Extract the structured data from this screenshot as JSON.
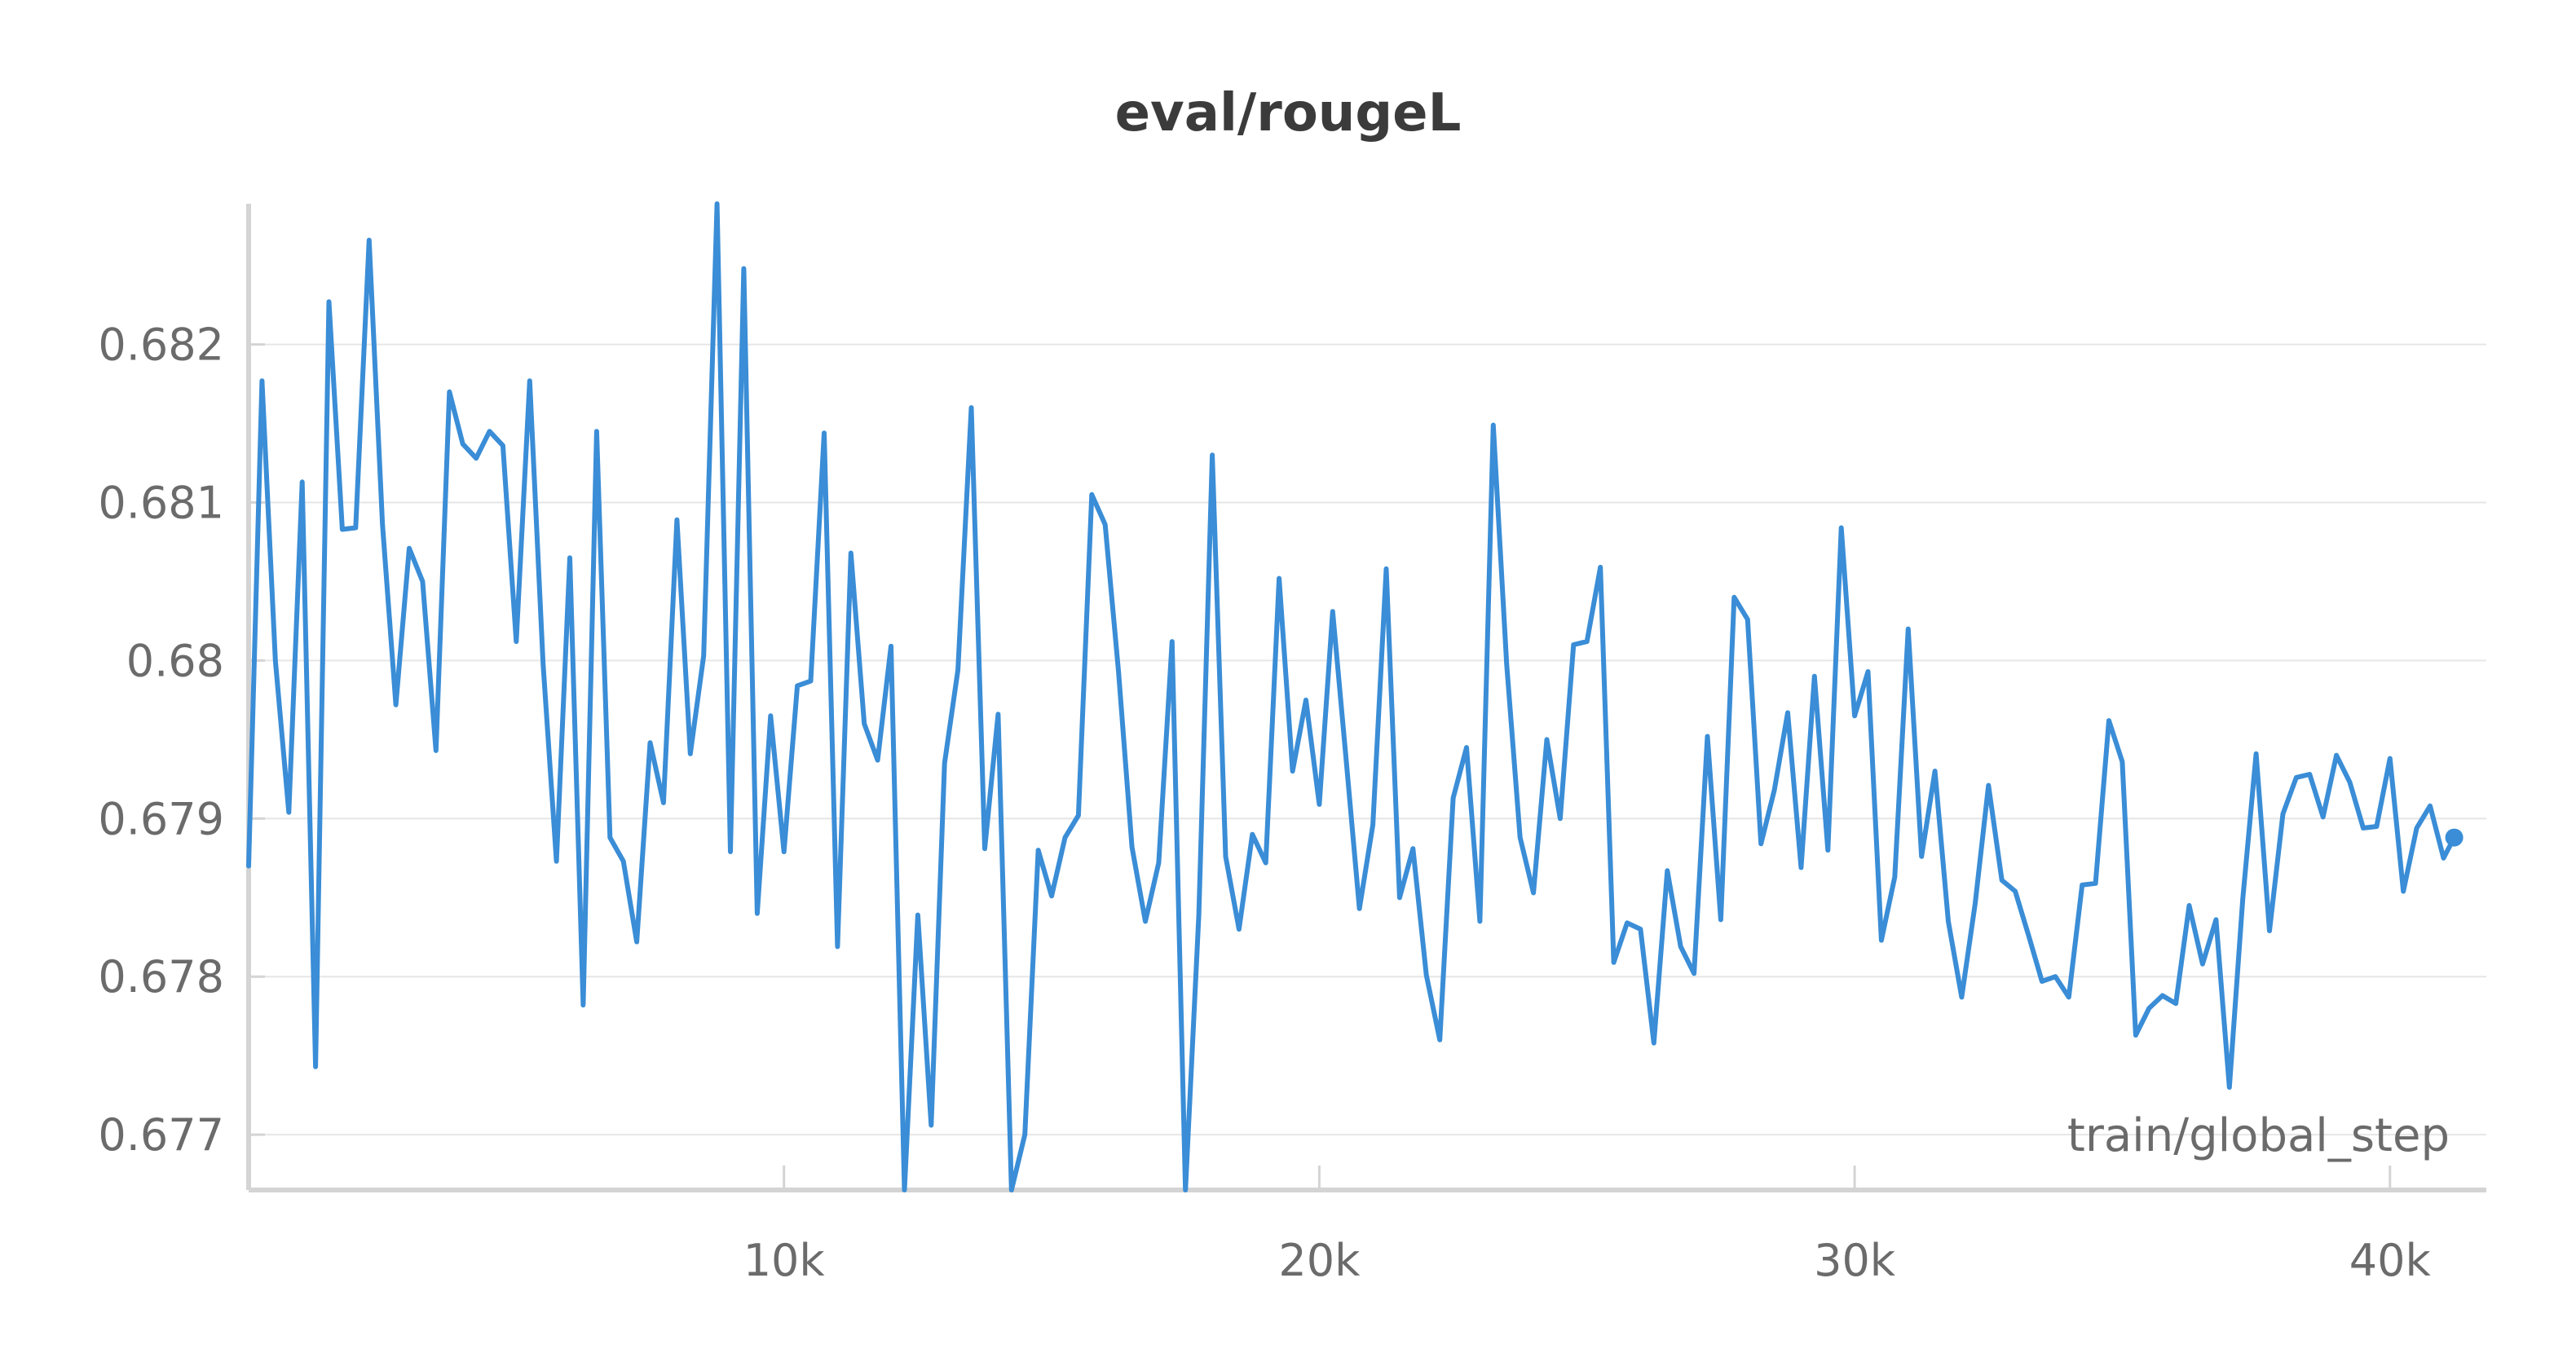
{
  "chart_data": {
    "type": "line",
    "title": "eval/rougeL",
    "xlabel": "train/global_step",
    "ylabel": "",
    "xlim": [
      0,
      41800
    ],
    "ylim": [
      0.67665,
      0.68289
    ],
    "x_ticks": [
      {
        "value": 10000,
        "label": "10k"
      },
      {
        "value": 20000,
        "label": "20k"
      },
      {
        "value": 30000,
        "label": "30k"
      },
      {
        "value": 40000,
        "label": "40k"
      }
    ],
    "y_ticks": [
      {
        "value": 0.677,
        "label": "0.677"
      },
      {
        "value": 0.678,
        "label": "0.678"
      },
      {
        "value": 0.679,
        "label": "0.679"
      },
      {
        "value": 0.68,
        "label": "0.68"
      },
      {
        "value": 0.681,
        "label": "0.681"
      },
      {
        "value": 0.682,
        "label": "0.682"
      }
    ],
    "grid": true,
    "legend": "none",
    "series": [
      {
        "color": "#3a8dd6",
        "points": [
          [
            0,
            0.6787
          ],
          [
            250,
            0.68177
          ],
          [
            500,
            0.68
          ],
          [
            750,
            0.67904
          ],
          [
            1000,
            0.68113
          ],
          [
            1250,
            0.67743
          ],
          [
            1500,
            0.68227
          ],
          [
            1750,
            0.68083
          ],
          [
            2000,
            0.68084
          ],
          [
            2250,
            0.68266
          ],
          [
            2500,
            0.68086
          ],
          [
            2750,
            0.67972
          ],
          [
            3000,
            0.68071
          ],
          [
            3250,
            0.6805
          ],
          [
            3500,
            0.67943
          ],
          [
            3750,
            0.6817
          ],
          [
            4000,
            0.68137
          ],
          [
            4250,
            0.68128
          ],
          [
            4500,
            0.68145
          ],
          [
            4750,
            0.68136
          ],
          [
            5000,
            0.68012
          ],
          [
            5250,
            0.68177
          ],
          [
            5500,
            0.67998
          ],
          [
            5750,
            0.67873
          ],
          [
            6000,
            0.68065
          ],
          [
            6250,
            0.67782
          ],
          [
            6500,
            0.68145
          ],
          [
            6750,
            0.67888
          ],
          [
            7000,
            0.67873
          ],
          [
            7250,
            0.67822
          ],
          [
            7500,
            0.67948
          ],
          [
            7750,
            0.6791
          ],
          [
            8000,
            0.68089
          ],
          [
            8250,
            0.67941
          ],
          [
            8500,
            0.68003
          ],
          [
            8750,
            0.68289
          ],
          [
            9000,
            0.67879
          ],
          [
            9250,
            0.68248
          ],
          [
            9500,
            0.6784
          ],
          [
            9750,
            0.67965
          ],
          [
            10000,
            0.67879
          ],
          [
            10250,
            0.67984
          ],
          [
            10500,
            0.67987
          ],
          [
            10750,
            0.68144
          ],
          [
            11000,
            0.67819
          ],
          [
            11250,
            0.68068
          ],
          [
            11500,
            0.6796
          ],
          [
            11750,
            0.67937
          ],
          [
            12000,
            0.68009
          ],
          [
            12250,
            0.67665
          ],
          [
            12500,
            0.67839
          ],
          [
            12750,
            0.67706
          ],
          [
            13000,
            0.67935
          ],
          [
            13250,
            0.67994
          ],
          [
            13500,
            0.6816
          ],
          [
            13750,
            0.67881
          ],
          [
            14000,
            0.67966
          ],
          [
            14250,
            0.67665
          ],
          [
            14500,
            0.677
          ],
          [
            14750,
            0.6788
          ],
          [
            15000,
            0.67851
          ],
          [
            15250,
            0.67888
          ],
          [
            15500,
            0.67902
          ],
          [
            15750,
            0.68105
          ],
          [
            16000,
            0.68086
          ],
          [
            16250,
            0.67993
          ],
          [
            16500,
            0.67882
          ],
          [
            16750,
            0.67835
          ],
          [
            17000,
            0.67872
          ],
          [
            17250,
            0.68012
          ],
          [
            17500,
            0.67665
          ],
          [
            17750,
            0.67839
          ],
          [
            18000,
            0.6813
          ],
          [
            18250,
            0.67876
          ],
          [
            18500,
            0.6783
          ],
          [
            18750,
            0.6789
          ],
          [
            19000,
            0.67872
          ],
          [
            19250,
            0.68052
          ],
          [
            19500,
            0.6793
          ],
          [
            19750,
            0.67975
          ],
          [
            20000,
            0.67909
          ],
          [
            20250,
            0.68031
          ],
          [
            20500,
            0.67938
          ],
          [
            20750,
            0.67843
          ],
          [
            21000,
            0.67896
          ],
          [
            21250,
            0.68058
          ],
          [
            21500,
            0.6785
          ],
          [
            21750,
            0.67881
          ],
          [
            22000,
            0.67801
          ],
          [
            22250,
            0.6776
          ],
          [
            22500,
            0.67913
          ],
          [
            22750,
            0.67945
          ],
          [
            23000,
            0.67835
          ],
          [
            23250,
            0.68149
          ],
          [
            23500,
            0.67998
          ],
          [
            23750,
            0.67888
          ],
          [
            24000,
            0.67853
          ],
          [
            24250,
            0.6795
          ],
          [
            24500,
            0.679
          ],
          [
            24750,
            0.6801
          ],
          [
            25000,
            0.68012
          ],
          [
            25250,
            0.68059
          ],
          [
            25500,
            0.67809
          ],
          [
            25750,
            0.67834
          ],
          [
            26000,
            0.6783
          ],
          [
            26250,
            0.67758
          ],
          [
            26500,
            0.67867
          ],
          [
            26750,
            0.67819
          ],
          [
            27000,
            0.67802
          ],
          [
            27250,
            0.67952
          ],
          [
            27500,
            0.67836
          ],
          [
            27750,
            0.6804
          ],
          [
            28000,
            0.68026
          ],
          [
            28250,
            0.67884
          ],
          [
            28500,
            0.67918
          ],
          [
            28750,
            0.67967
          ],
          [
            29000,
            0.67869
          ],
          [
            29250,
            0.6799
          ],
          [
            29500,
            0.6788
          ],
          [
            29750,
            0.68084
          ],
          [
            30000,
            0.67965
          ],
          [
            30250,
            0.67993
          ],
          [
            30500,
            0.67823
          ],
          [
            30750,
            0.67863
          ],
          [
            31000,
            0.6802
          ],
          [
            31250,
            0.67876
          ],
          [
            31500,
            0.6793
          ],
          [
            31750,
            0.67835
          ],
          [
            32000,
            0.67787
          ],
          [
            32250,
            0.67846
          ],
          [
            32500,
            0.67921
          ],
          [
            32750,
            0.67861
          ],
          [
            33000,
            0.67854
          ],
          [
            33250,
            0.67826
          ],
          [
            33500,
            0.67797
          ],
          [
            33750,
            0.678
          ],
          [
            34000,
            0.67787
          ],
          [
            34250,
            0.67858
          ],
          [
            34500,
            0.67859
          ],
          [
            34750,
            0.67962
          ],
          [
            35000,
            0.67936
          ],
          [
            35250,
            0.67763
          ],
          [
            35500,
            0.6778
          ],
          [
            35750,
            0.67788
          ],
          [
            36000,
            0.67783
          ],
          [
            36250,
            0.67845
          ],
          [
            36500,
            0.67808
          ],
          [
            36750,
            0.67836
          ],
          [
            37000,
            0.6773
          ],
          [
            37250,
            0.67849
          ],
          [
            37500,
            0.67941
          ],
          [
            37750,
            0.67829
          ],
          [
            38000,
            0.67903
          ],
          [
            38250,
            0.67926
          ],
          [
            38500,
            0.67928
          ],
          [
            38750,
            0.67901
          ],
          [
            39000,
            0.6794
          ],
          [
            39250,
            0.67923
          ],
          [
            39500,
            0.67894
          ],
          [
            39750,
            0.67895
          ],
          [
            40000,
            0.67938
          ],
          [
            40250,
            0.67854
          ],
          [
            40500,
            0.67894
          ],
          [
            40750,
            0.67908
          ],
          [
            41000,
            0.67875
          ],
          [
            41200,
            0.67888
          ]
        ]
      }
    ]
  }
}
